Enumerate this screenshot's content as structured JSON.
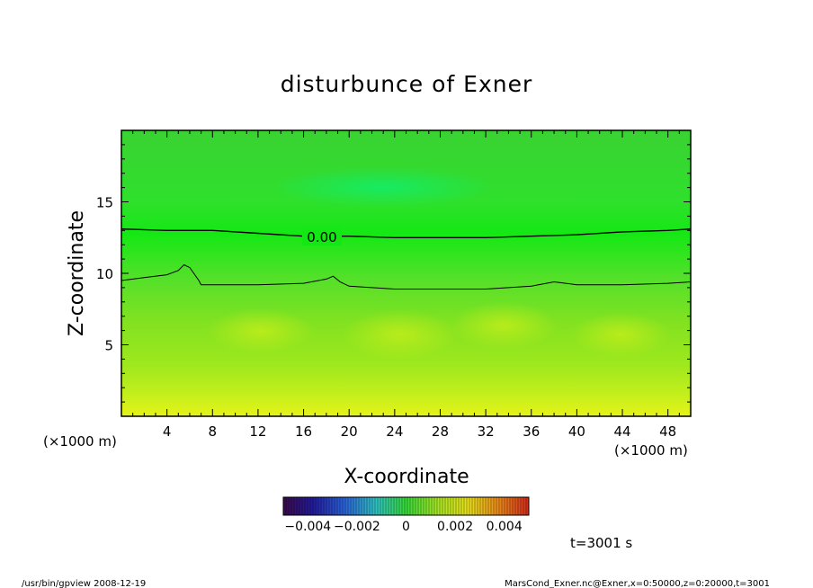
{
  "chart_data": {
    "type": "heatmap",
    "title": "disturbunce of Exner",
    "xlabel": "X-coordinate",
    "ylabel": "Z-coordinate",
    "x_unit_label_left": "(×1000 m)",
    "x_unit_label_right": "(×1000 m)",
    "xlim": [
      0,
      50
    ],
    "ylim": [
      0,
      20
    ],
    "xticks": [
      "4",
      "8",
      "12",
      "16",
      "20",
      "24",
      "28",
      "32",
      "36",
      "40",
      "44",
      "48"
    ],
    "yticks": [
      "5",
      "10",
      "15"
    ],
    "colorbar": {
      "range": [
        -0.005,
        0.005
      ],
      "tick_labels": [
        "−0.004",
        "−0.002",
        "0",
        "0.002",
        "0.004"
      ]
    },
    "contour_label": "0.00",
    "time_label": "t=3001 s",
    "footer_left": "/usr/bin/gpview   2008-12-19",
    "footer_right": "MarsCond_Exner.nc@Exner,x=0:50000,z=0:20000,t=3001",
    "contours": [
      {
        "level": "0.00",
        "x": [
          0,
          4,
          8,
          12,
          16,
          20,
          24,
          28,
          32,
          36,
          40,
          44,
          48,
          50
        ],
        "z": [
          13.1,
          13.0,
          13.0,
          12.8,
          12.6,
          12.6,
          12.5,
          12.5,
          12.5,
          12.6,
          12.7,
          12.9,
          13.0,
          13.1
        ]
      },
      {
        "level": "",
        "x": [
          0,
          2,
          4,
          5,
          5.5,
          6,
          6.8,
          7,
          8,
          12,
          16,
          18,
          18.6,
          19.2,
          20,
          24,
          28,
          32,
          36,
          38,
          40,
          44,
          48,
          50
        ],
        "z": [
          9.5,
          9.7,
          9.9,
          10.2,
          10.6,
          10.4,
          9.5,
          9.2,
          9.2,
          9.2,
          9.3,
          9.6,
          9.8,
          9.4,
          9.1,
          8.9,
          8.9,
          8.9,
          9.1,
          9.4,
          9.2,
          9.2,
          9.3,
          9.4
        ]
      }
    ]
  }
}
